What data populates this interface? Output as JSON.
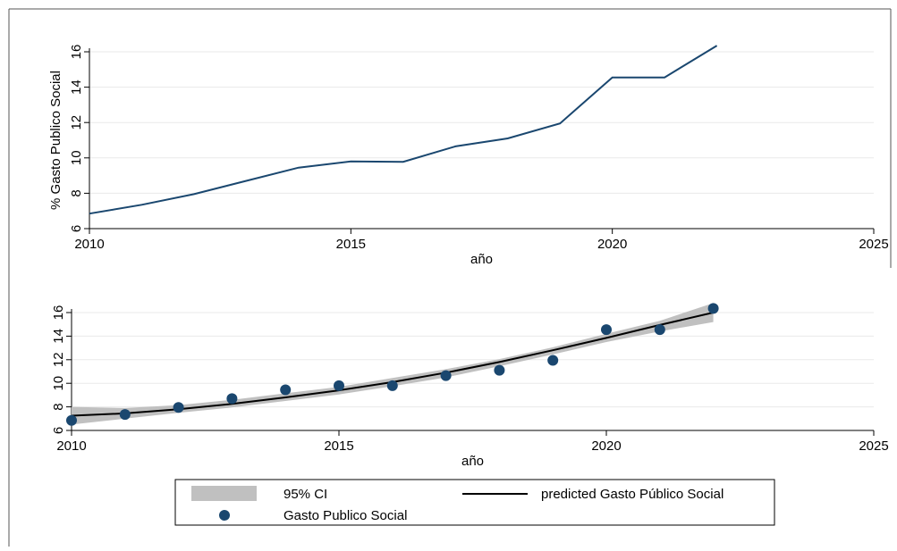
{
  "chart_data": [
    {
      "type": "line",
      "xlabel": "año",
      "ylabel": "% Gasto Publico Social",
      "xlim": [
        2010,
        2025
      ],
      "ylim": [
        6,
        16
      ],
      "x_ticks": [
        "2010",
        "2015",
        "2020",
        "2025"
      ],
      "y_ticks": [
        "6",
        "8",
        "10",
        "12",
        "14",
        "16"
      ],
      "grid": "horizontal",
      "series": [
        {
          "x": [
            2010,
            2011,
            2012,
            2013,
            2014,
            2015,
            2016,
            2017,
            2018,
            2019,
            2020,
            2021,
            2022
          ],
          "y": [
            6.85,
            7.35,
            7.95,
            8.7,
            9.45,
            9.8,
            9.78,
            10.65,
            11.1,
            11.95,
            14.55,
            14.55,
            16.35
          ],
          "color": "#1a476f"
        }
      ]
    },
    {
      "type": "scatter",
      "xlabel": "año",
      "ylabel": "",
      "xlim": [
        2010,
        2025
      ],
      "ylim": [
        6,
        16
      ],
      "x_ticks": [
        "2010",
        "2015",
        "2020",
        "2025"
      ],
      "y_ticks": [
        "6",
        "8",
        "10",
        "12",
        "14",
        "16"
      ],
      "grid": "horizontal",
      "legend_position": "bottom",
      "series": [
        {
          "name": "95% CI",
          "kind": "band",
          "x": [
            2010,
            2011,
            2012,
            2013,
            2014,
            2015,
            2016,
            2017,
            2018,
            2019,
            2020,
            2021,
            2022
          ],
          "lower": [
            6.5,
            7.0,
            7.5,
            7.95,
            8.5,
            9.05,
            9.75,
            10.5,
            11.45,
            12.45,
            13.5,
            14.4,
            15.2
          ],
          "upper": [
            8.0,
            7.9,
            8.15,
            8.6,
            9.15,
            9.7,
            10.45,
            11.2,
            12.05,
            13.05,
            14.2,
            15.3,
            16.8
          ],
          "color": "#c0c0c0"
        },
        {
          "name": "predicted Gasto Público Social",
          "kind": "line",
          "x": [
            2010,
            2011,
            2012,
            2013,
            2014,
            2015,
            2016,
            2017,
            2018,
            2019,
            2020,
            2021,
            2022
          ],
          "y": [
            7.25,
            7.45,
            7.8,
            8.25,
            8.8,
            9.4,
            10.1,
            10.9,
            11.8,
            12.8,
            13.85,
            14.95,
            16.0
          ],
          "color": "#000000"
        },
        {
          "name": "Gasto Publico Social",
          "kind": "points",
          "x": [
            2010,
            2011,
            2012,
            2013,
            2014,
            2015,
            2016,
            2017,
            2018,
            2019,
            2020,
            2021,
            2022
          ],
          "y": [
            6.85,
            7.35,
            7.95,
            8.7,
            9.45,
            9.8,
            9.8,
            10.65,
            11.1,
            11.95,
            14.55,
            14.55,
            16.35
          ],
          "color": "#1a476f"
        }
      ]
    }
  ]
}
